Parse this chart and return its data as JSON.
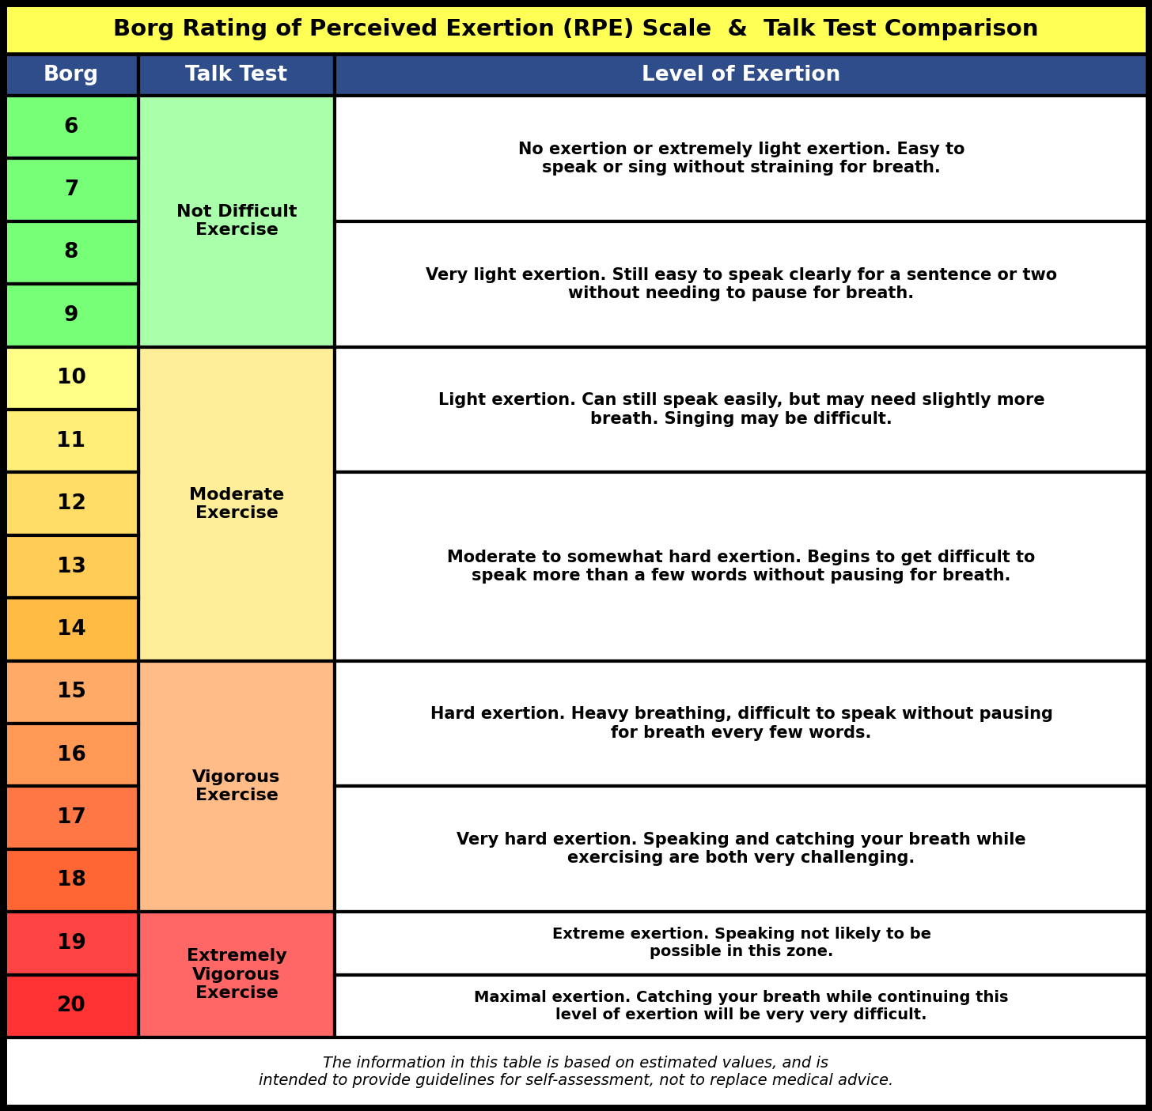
{
  "title": "Borg Rating of Perceived Exertion (RPE) Scale  &  Talk Test Comparison",
  "title_bg": "#FFFF55",
  "header_bg": "#2E4D8A",
  "header_text_color": "#FFFFFF",
  "col_headers": [
    "Borg",
    "Talk Test",
    "Level of Exertion"
  ],
  "groups": [
    {
      "borg_nums": [
        "6",
        "7",
        "8",
        "9"
      ],
      "borg_colors": [
        "#77FF77",
        "#77FF77",
        "#77FF77",
        "#77FF77"
      ],
      "talk_test_label": "Not Difficult\nExercise",
      "talk_test_color": "#AAFFAA",
      "descriptions": [
        "No exertion or extremely light exertion. Easy to\nspeak or sing without straining for breath.",
        "Very light exertion. Still easy to speak clearly for a sentence or two\nwithout needing to pause for breath."
      ],
      "desc_splits": [
        2,
        2
      ]
    },
    {
      "borg_nums": [
        "10",
        "11",
        "12",
        "13",
        "14"
      ],
      "borg_colors": [
        "#FFFF88",
        "#FFEE77",
        "#FFDD66",
        "#FFCC55",
        "#FFBB44"
      ],
      "talk_test_label": "Moderate\nExercise",
      "talk_test_color": "#FFEE99",
      "descriptions": [
        "Light exertion. Can still speak easily, but may need slightly more\nbreath. Singing may be difficult.",
        "Moderate to somewhat hard exertion. Begins to get difficult to\nspeak more than a few words without pausing for breath."
      ],
      "desc_splits": [
        2,
        3
      ]
    },
    {
      "borg_nums": [
        "15",
        "16",
        "17",
        "18"
      ],
      "borg_colors": [
        "#FFAA66",
        "#FF9955",
        "#FF7744",
        "#FF6633"
      ],
      "talk_test_label": "Vigorous\nExercise",
      "talk_test_color": "#FFBB88",
      "descriptions": [
        "Hard exertion. Heavy breathing, difficult to speak without pausing\nfor breath every few words.",
        "Very hard exertion. Speaking and catching your breath while\nexercising are both very challenging."
      ],
      "desc_splits": [
        2,
        2
      ]
    },
    {
      "borg_nums": [
        "19",
        "20"
      ],
      "borg_colors": [
        "#FF4444",
        "#FF3333"
      ],
      "talk_test_label": "Extremely\nVigorous\nExercise",
      "talk_test_color": "#FF6666",
      "descriptions": [
        "Extreme exertion. Speaking not likely to be\npossible in this zone.",
        "Maximal exertion. Catching your breath while continuing this\nlevel of exertion will be very very difficult."
      ],
      "desc_splits": [
        1,
        1
      ]
    }
  ],
  "footer_text": "The information in this table is based on estimated values, and is\nintended to provide guidelines for self-assessment, not to replace medical advice."
}
